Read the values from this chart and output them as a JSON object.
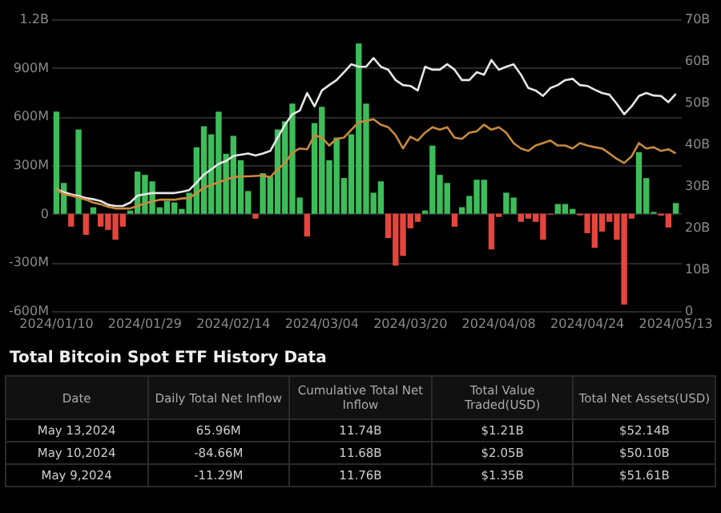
{
  "chart_data": [
    {
      "type": "bar",
      "categories": [
        "2024/01/10",
        null,
        null,
        null,
        null,
        null,
        null,
        null,
        null,
        null,
        null,
        null,
        "2024/01/29",
        null,
        null,
        null,
        null,
        null,
        null,
        null,
        null,
        null,
        null,
        null,
        "2024/02/14",
        null,
        null,
        null,
        null,
        null,
        null,
        null,
        null,
        null,
        null,
        null,
        "2024/03/04",
        null,
        null,
        null,
        null,
        null,
        null,
        null,
        null,
        null,
        null,
        null,
        "2024/03/20",
        null,
        null,
        null,
        null,
        null,
        null,
        null,
        null,
        null,
        null,
        null,
        "2024/04/08",
        null,
        null,
        null,
        null,
        null,
        null,
        null,
        null,
        null,
        null,
        null,
        "2024/04/24",
        null,
        null,
        null,
        null,
        null,
        null,
        null,
        null,
        null,
        null,
        null,
        "2024/05/13"
      ],
      "values": [
        630000000,
        190000000,
        -80000000,
        520000000,
        -130000000,
        40000000,
        -80000000,
        -100000000,
        -160000000,
        -80000000,
        20000000,
        260000000,
        240000000,
        200000000,
        40000000,
        80000000,
        70000000,
        30000000,
        130000000,
        410000000,
        540000000,
        490000000,
        630000000,
        370000000,
        480000000,
        330000000,
        140000000,
        -30000000,
        250000000,
        230000000,
        520000000,
        570000000,
        680000000,
        100000000,
        -140000000,
        560000000,
        660000000,
        330000000,
        470000000,
        220000000,
        490000000,
        1050000000,
        680000000,
        130000000,
        200000000,
        -150000000,
        -320000000,
        -260000000,
        -90000000,
        -50000000,
        20000000,
        420000000,
        240000000,
        190000000,
        -80000000,
        40000000,
        110000000,
        210000000,
        210000000,
        -220000000,
        -20000000,
        130000000,
        100000000,
        -50000000,
        -30000000,
        -50000000,
        -160000000,
        -5000000,
        60000000,
        60000000,
        30000000,
        -10000000,
        -120000000,
        -210000000,
        -110000000,
        -50000000,
        -160000000,
        -560000000,
        -30000000,
        380000000,
        220000000,
        11540000,
        -11290000,
        -84660000,
        65960000
      ],
      "colors": [
        "#3dbd5a",
        "#3dbd5a",
        "#e5453d",
        "#3dbd5a",
        "#e5453d",
        "#3dbd5a",
        "#e5453d",
        "#e5453d",
        "#e5453d",
        "#e5453d",
        "#3dbd5a",
        "#3dbd5a",
        "#3dbd5a",
        "#3dbd5a",
        "#3dbd5a",
        "#3dbd5a",
        "#3dbd5a",
        "#3dbd5a",
        "#3dbd5a",
        "#3dbd5a",
        "#3dbd5a",
        "#3dbd5a",
        "#3dbd5a",
        "#3dbd5a",
        "#3dbd5a",
        "#3dbd5a",
        "#3dbd5a",
        "#e5453d",
        "#3dbd5a",
        "#3dbd5a",
        "#3dbd5a",
        "#3dbd5a",
        "#3dbd5a",
        "#3dbd5a",
        "#e5453d",
        "#3dbd5a",
        "#3dbd5a",
        "#3dbd5a",
        "#3dbd5a",
        "#3dbd5a",
        "#3dbd5a",
        "#3dbd5a",
        "#3dbd5a",
        "#3dbd5a",
        "#3dbd5a",
        "#e5453d",
        "#e5453d",
        "#e5453d",
        "#e5453d",
        "#e5453d",
        "#3dbd5a",
        "#3dbd5a",
        "#3dbd5a",
        "#3dbd5a",
        "#e5453d",
        "#3dbd5a",
        "#3dbd5a",
        "#3dbd5a",
        "#3dbd5a",
        "#e5453d",
        "#e5453d",
        "#3dbd5a",
        "#3dbd5a",
        "#e5453d",
        "#e5453d",
        "#e5453d",
        "#e5453d",
        "#e5453d",
        "#3dbd5a",
        "#3dbd5a",
        "#3dbd5a",
        "#e5453d",
        "#e5453d",
        "#e5453d",
        "#e5453d",
        "#e5453d",
        "#e5453d",
        "#e5453d",
        "#e5453d",
        "#3dbd5a",
        "#3dbd5a",
        "#3dbd5a",
        "#e5453d",
        "#e5453d",
        "#3dbd5a"
      ],
      "series": [
        {
          "type": "line",
          "axis": "y2",
          "color": "#e6e6e6",
          "values": [
            29.2,
            28.5,
            28.0,
            27.6,
            27.1,
            26.8,
            26.4,
            25.5,
            25.2,
            25.2,
            26.0,
            27.7,
            28.0,
            28.3,
            28.3,
            28.3,
            28.3,
            28.6,
            29.0,
            30.8,
            32.7,
            34.0,
            35.3,
            36.0,
            37.2,
            37.5,
            37.8,
            37.3,
            37.8,
            38.4,
            41.6,
            44.7,
            47.2,
            48.1,
            52.3,
            49.1,
            52.9,
            54.2,
            55.4,
            57.3,
            59.2,
            58.6,
            58.6,
            60.7,
            58.6,
            57.9,
            55.4,
            54.2,
            54.0,
            52.9,
            58.6,
            57.9,
            57.9,
            59.2,
            57.9,
            55.4,
            55.4,
            57.3,
            56.7,
            60.2,
            57.9,
            58.6,
            59.2,
            56.7,
            53.5,
            52.9,
            51.6,
            53.5,
            54.2,
            55.4,
            55.7,
            54.2,
            54.0,
            53.1,
            52.3,
            51.9,
            49.7,
            47.2,
            49.1,
            51.6,
            52.3,
            51.7,
            51.6,
            50.1,
            52.1
          ]
        },
        {
          "type": "line",
          "axis": "y2",
          "color": "#c88a3e",
          "values": [
            29.2,
            28.0,
            27.7,
            27.2,
            26.7,
            26.0,
            25.6,
            25.0,
            24.6,
            24.6,
            24.6,
            25.2,
            25.8,
            26.3,
            26.7,
            26.7,
            26.7,
            27.0,
            27.1,
            28.3,
            29.6,
            30.2,
            30.9,
            31.5,
            32.1,
            32.3,
            32.3,
            32.4,
            32.5,
            32.1,
            34.0,
            35.5,
            38.0,
            39.0,
            38.8,
            42.2,
            41.6,
            39.7,
            41.3,
            41.6,
            43.5,
            45.3,
            45.6,
            46.0,
            44.7,
            44.1,
            42.2,
            39.0,
            41.8,
            40.9,
            42.8,
            44.1,
            43.5,
            44.1,
            41.6,
            41.3,
            42.8,
            43.1,
            44.7,
            43.5,
            44.1,
            42.8,
            40.3,
            39.0,
            38.4,
            39.7,
            40.3,
            40.9,
            39.7,
            39.7,
            39.0,
            40.3,
            39.7,
            39.3,
            39.0,
            37.8,
            36.5,
            35.5,
            37.1,
            40.3,
            39.0,
            39.3,
            38.4,
            38.8,
            37.8
          ]
        }
      ],
      "ylim": [
        -600000000,
        1200000000
      ],
      "yticks": [
        {
          "value": -600000000,
          "label": "-600M"
        },
        {
          "value": -300000000,
          "label": "-300M"
        },
        0,
        {
          "value": 300000000,
          "label": "300M"
        },
        {
          "value": 600000000,
          "label": "600M"
        },
        {
          "value": 900000000,
          "label": "900M"
        },
        {
          "value": 1200000000,
          "label": "1.2B"
        }
      ],
      "y2lim": [
        0,
        70
      ],
      "y2ticks": [
        0,
        {
          "value": 10,
          "label": "10B"
        },
        {
          "value": 20,
          "label": "20B"
        },
        {
          "value": 30,
          "label": "30B"
        },
        {
          "value": 40,
          "label": "40B"
        },
        {
          "value": 50,
          "label": "50B"
        },
        {
          "value": 60,
          "label": "60B"
        },
        {
          "value": 70,
          "label": "70B"
        }
      ],
      "grid": "y"
    },
    {
      "type": "other",
      "title": "Total Bitcoin Spot ETF History Data",
      "categories": [
        "Date",
        "Daily Total Net Inflow",
        "Cumulative Total Net Inflow",
        "Total Value Traded(USD)",
        "Total Net Assets(USD)"
      ],
      "annotations": [
        "May 13,2024",
        "65.96M",
        "11.74B",
        "$1.21B",
        "$52.14B",
        "May 10,2024",
        "-84.66M",
        "11.68B",
        "$2.05B",
        "$50.10B",
        "May 9,2024",
        "-11.29M",
        "11.76B",
        "$1.35B",
        "$51.61B"
      ]
    }
  ]
}
